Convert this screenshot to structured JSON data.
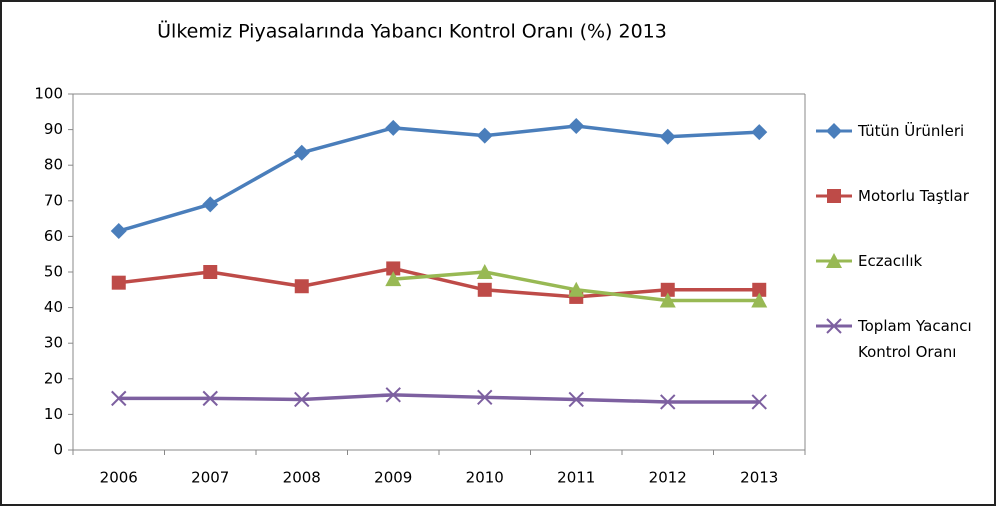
{
  "chart_data": {
    "type": "line",
    "title": "Ülkemiz Piyasalarında Yabancı Kontrol Oranı (%) 2013",
    "categories": [
      "2006",
      "2007",
      "2008",
      "2009",
      "2010",
      "2011",
      "2012",
      "2013"
    ],
    "series": [
      {
        "name": "Tütün Ürünleri",
        "color": "#4a7ebb",
        "marker": "diamond",
        "values": [
          61.5,
          69,
          83.5,
          90.5,
          88.3,
          91,
          88,
          89.3
        ]
      },
      {
        "name": "Motorlu Taştlar",
        "color": "#be4b48",
        "marker": "square",
        "values": [
          47,
          50,
          46,
          51,
          45,
          43,
          45,
          45
        ]
      },
      {
        "name": "Eczacılık",
        "color": "#98b954",
        "marker": "triangle",
        "values": [
          null,
          null,
          null,
          48,
          50,
          45,
          42,
          42
        ]
      },
      {
        "name": "Toplam Yacancı Kontrol Oranı",
        "color": "#7d60a0",
        "marker": "x",
        "values": [
          14.5,
          14.5,
          14.2,
          15.5,
          14.8,
          14.2,
          13.5,
          13.5
        ]
      }
    ],
    "ylim": [
      0,
      100
    ],
    "yticks": [
      0,
      10,
      20,
      30,
      40,
      50,
      60,
      70,
      80,
      90,
      100
    ],
    "grid": false,
    "legend": "right"
  }
}
